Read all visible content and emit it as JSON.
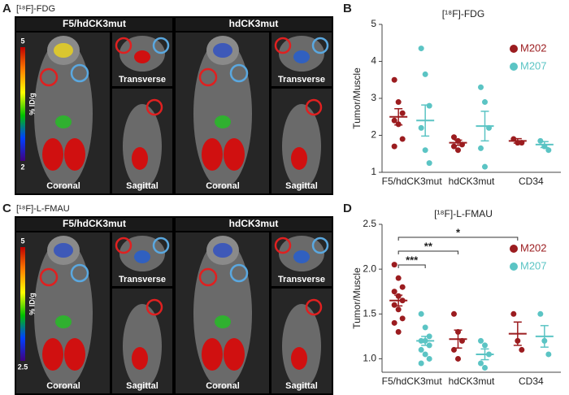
{
  "panels": {
    "A": {
      "letter": "A",
      "tracer": "[¹⁸F]-FDG",
      "groups": [
        "F5/hdCK3mut",
        "hdCK3mut"
      ],
      "views": [
        "Coronal",
        "Transverse",
        "Sagittal"
      ],
      "scale": {
        "label": "% ID/g",
        "max": "5",
        "min": "2"
      }
    },
    "C": {
      "letter": "C",
      "tracer": "[¹⁸F]-L-FMAU",
      "groups": [
        "F5/hdCK3mut",
        "hdCK3mut"
      ],
      "views": [
        "Coronal",
        "Transverse",
        "Sagittal"
      ],
      "scale": {
        "label": "% ID/g",
        "max": "5",
        "min": "2.5"
      }
    }
  },
  "chart_data": [
    {
      "type": "dotplot",
      "letter": "B",
      "title": "[¹⁸F]-FDG",
      "y_label": "Tumor/Muscle",
      "categories": [
        "F5/hdCK3mut",
        "hdCK3mut",
        "CD34"
      ],
      "series": [
        {
          "name": "M202",
          "color": "#9b1c1f",
          "points": [
            [
              3.5,
              2.9,
              2.6,
              2.4,
              2.3,
              1.9,
              1.7
            ],
            [
              1.95,
              1.85,
              1.75,
              1.7,
              1.6
            ],
            [
              1.9,
              1.8,
              1.8
            ]
          ],
          "means": [
            2.5,
            1.8,
            1.85
          ],
          "errors": [
            0.22,
            0.07,
            0.06
          ]
        },
        {
          "name": "M207",
          "color": "#5bc4c4",
          "points": [
            [
              4.35,
              3.65,
              2.8,
              2.2,
              1.6,
              1.25
            ],
            [
              3.3,
              2.9,
              2.2,
              1.65,
              1.15
            ],
            [
              1.85,
              1.7,
              1.6
            ]
          ],
          "means": [
            2.4,
            2.25,
            1.75
          ],
          "errors": [
            0.42,
            0.4,
            0.08
          ]
        }
      ],
      "ylim": [
        1,
        5
      ],
      "yticks": [
        1,
        2,
        3,
        4,
        5
      ]
    },
    {
      "type": "dotplot",
      "letter": "D",
      "title": "[¹⁸F]-L-FMAU",
      "y_label": "Tumor/Muscle",
      "categories": [
        "F5/hdCK3mut",
        "hdCK3mut",
        "CD34"
      ],
      "series": [
        {
          "name": "M202",
          "color": "#9b1c1f",
          "points": [
            [
              2.05,
              1.9,
              1.8,
              1.75,
              1.7,
              1.65,
              1.6,
              1.55,
              1.45,
              1.4,
              1.3
            ],
            [
              1.5,
              1.3,
              1.2,
              1.1,
              1.0
            ],
            [
              1.5,
              1.2,
              1.1
            ]
          ],
          "means": [
            1.65,
            1.22,
            1.28
          ],
          "errors": [
            0.06,
            0.1,
            0.13
          ]
        },
        {
          "name": "M207",
          "color": "#5bc4c4",
          "points": [
            [
              1.5,
              1.35,
              1.25,
              1.2,
              1.2,
              1.15,
              1.1,
              1.05,
              1.0,
              0.95
            ],
            [
              1.2,
              1.15,
              1.05,
              0.95,
              0.9
            ],
            [
              1.5,
              1.2,
              1.05
            ]
          ],
          "means": [
            1.2,
            1.05,
            1.25
          ],
          "errors": [
            0.05,
            0.06,
            0.12
          ]
        }
      ],
      "annotations": [
        {
          "text": "***",
          "between": [
            [
              0,
              0
            ],
            [
              0,
              1
            ]
          ]
        },
        {
          "text": "**",
          "between": [
            [
              0,
              0
            ],
            [
              1,
              0
            ]
          ]
        },
        {
          "text": "*",
          "between": [
            [
              0,
              0
            ],
            [
              2,
              0
            ]
          ]
        }
      ],
      "ylim": [
        0.85,
        2.5
      ],
      "yticks": [
        {
          "value": 1,
          "label": "1.0"
        },
        {
          "value": 1.5,
          "label": "1.5"
        },
        {
          "value": 2,
          "label": "2.0"
        },
        {
          "value": 2.5,
          "label": "2.5"
        }
      ]
    }
  ]
}
